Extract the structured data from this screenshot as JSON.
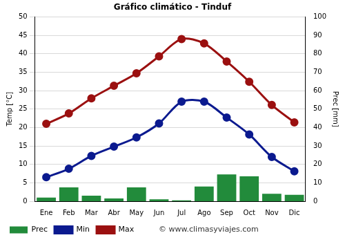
{
  "chart_data": {
    "type": "bar",
    "title": "Gráfico climático - Tinduf",
    "categories": [
      "Ene",
      "Feb",
      "Mar",
      "Abr",
      "May",
      "Jun",
      "Jul",
      "Ago",
      "Sep",
      "Oct",
      "Nov",
      "Dic"
    ],
    "series": [
      {
        "name": "Prec",
        "type": "bar",
        "axis": "y2",
        "color": "#228b3b",
        "values": [
          2,
          7.5,
          3,
          1.5,
          7.5,
          1,
          0.5,
          8,
          14.5,
          13.5,
          4,
          3.5
        ]
      },
      {
        "name": "Min",
        "type": "line",
        "color": "#0b1a8f",
        "marker": "circle",
        "values": [
          6.5,
          8.8,
          12.3,
          14.8,
          17.3,
          21.1,
          27,
          27,
          22.7,
          18.1,
          12,
          8.1
        ]
      },
      {
        "name": "Max",
        "type": "line",
        "color": "#9b1010",
        "marker": "circle",
        "values": [
          21,
          23.8,
          27.9,
          31.3,
          34.7,
          39.3,
          44,
          42.8,
          37.9,
          32.4,
          26.1,
          21.4
        ]
      }
    ],
    "y_label": "Temp [°C]",
    "y2_label": "Prec [mm]",
    "ylim": [
      0,
      50
    ],
    "yticks": [
      0,
      5,
      10,
      15,
      20,
      25,
      30,
      35,
      40,
      45,
      50
    ],
    "y2lim": [
      0,
      100
    ],
    "y2ticks": [
      0,
      10,
      20,
      30,
      40,
      50,
      60,
      70,
      80,
      90,
      100
    ],
    "grid": true,
    "legend": "bottom",
    "annotations": [
      "© www.climasyviajes.com"
    ]
  }
}
